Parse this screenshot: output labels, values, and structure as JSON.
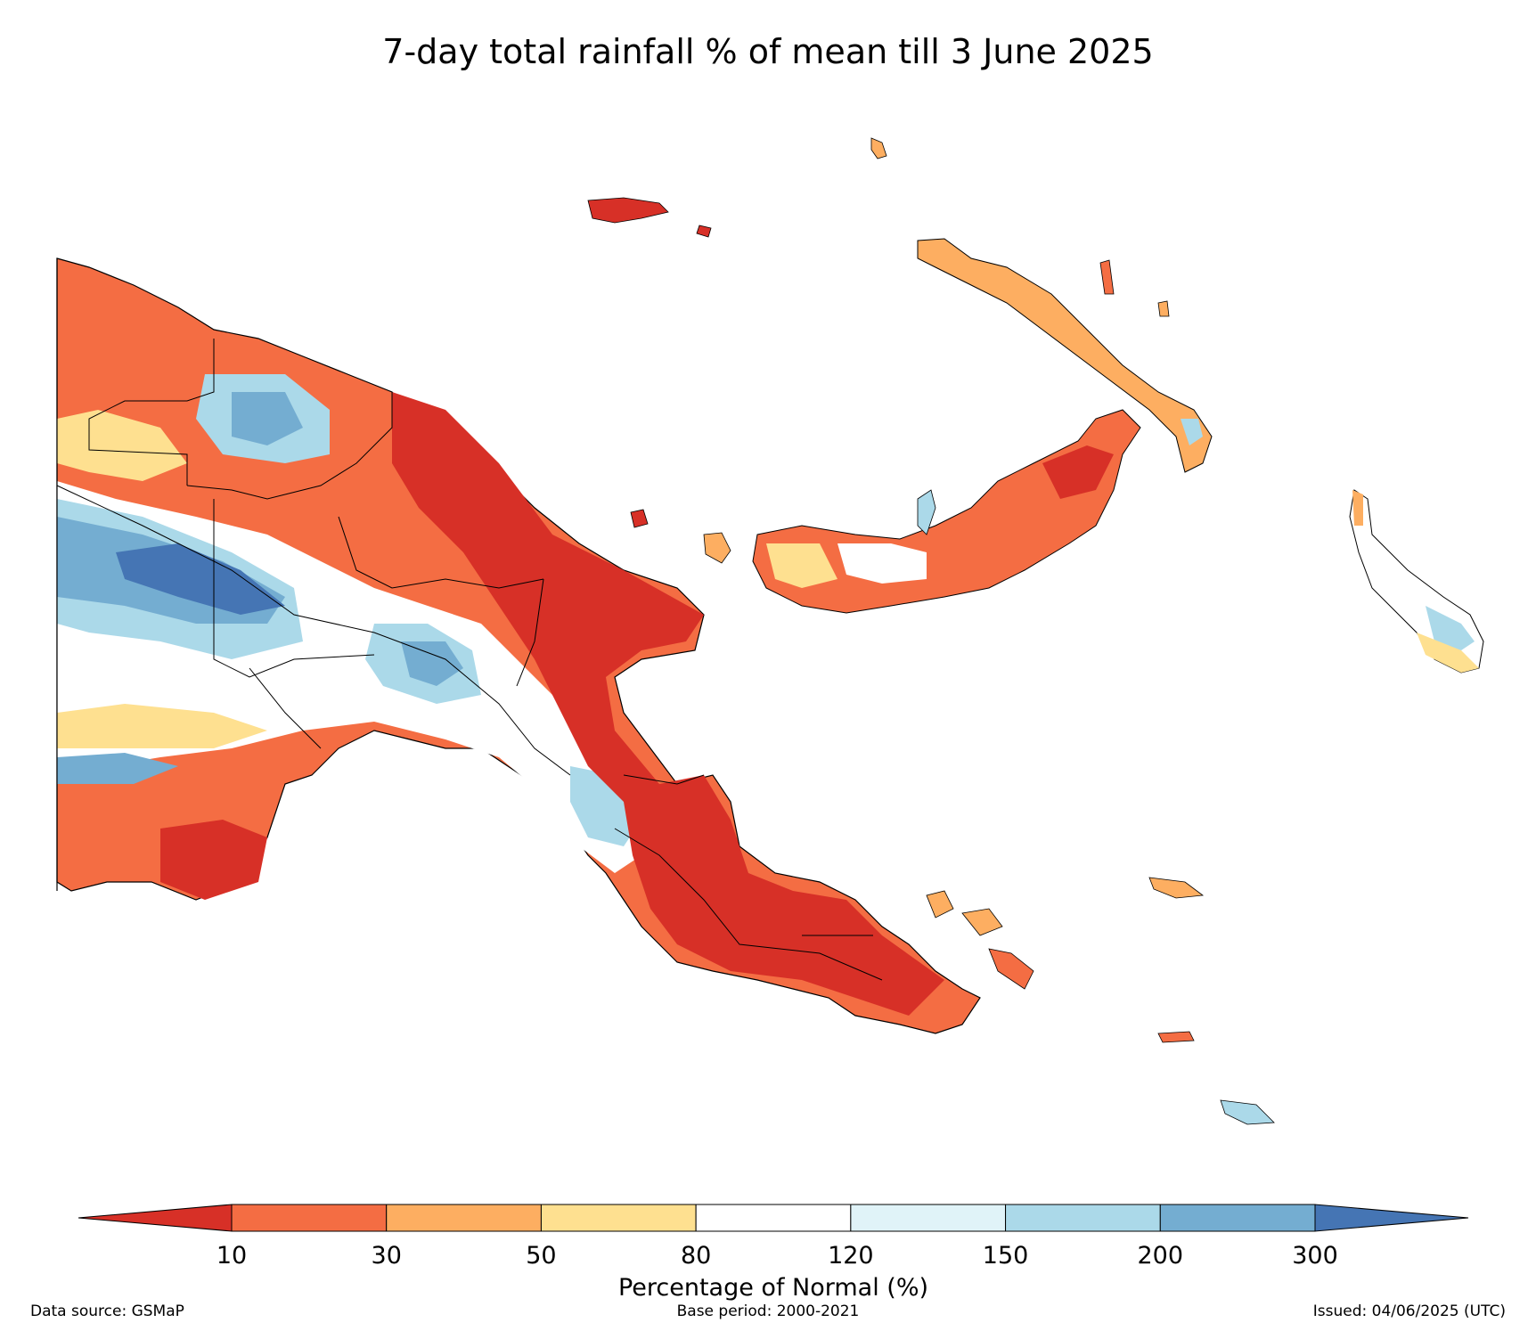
{
  "title": "7-day total rainfall % of mean till 3 June 2025",
  "colorbar": {
    "label": "Percentage of Normal (%)",
    "ticks": [
      "10",
      "30",
      "50",
      "80",
      "120",
      "150",
      "200",
      "300"
    ],
    "bins": [
      {
        "range": "<10",
        "color": "#d73027"
      },
      {
        "range": "10-30",
        "color": "#f46d43"
      },
      {
        "range": "30-50",
        "color": "#fdae61"
      },
      {
        "range": "50-80",
        "color": "#fee090"
      },
      {
        "range": "80-120",
        "color": "#ffffff"
      },
      {
        "range": "120-150",
        "color": "#e0f3f8"
      },
      {
        "range": "150-200",
        "color": "#abd9e9"
      },
      {
        "range": "200-300",
        "color": "#74add1"
      },
      {
        "range": ">300",
        "color": "#4575b4"
      }
    ]
  },
  "footer": {
    "source": "Data source: GSMaP",
    "base_period": "Base period: 2000-2021",
    "issued": "Issued: 04/06/2025 (UTC)"
  }
}
